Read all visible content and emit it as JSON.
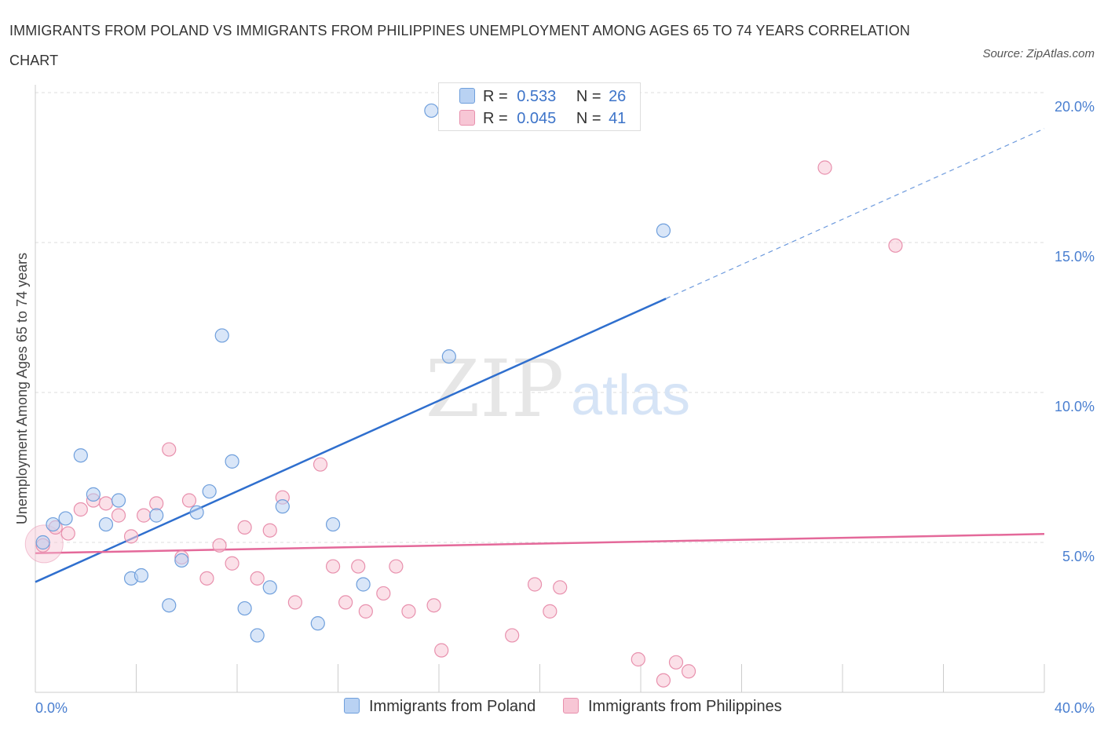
{
  "title": "IMMIGRANTS FROM POLAND VS IMMIGRANTS FROM PHILIPPINES UNEMPLOYMENT AMONG AGES 65 TO 74 YEARS CORRELATION CHART",
  "source": "Source: ZipAtlas.com",
  "watermark": {
    "zip": "ZIP",
    "atlas": "atlas"
  },
  "legend": {
    "r_label": "R =",
    "n_label": "N =",
    "rows": [
      {
        "r": "0.533",
        "n": "26"
      },
      {
        "r": "0.045",
        "n": "41"
      }
    ]
  },
  "bottom_legend": [
    "Immigrants from Poland",
    "Immigrants from Philippines"
  ],
  "colors": {
    "poland_fill": "#b9d2f3",
    "poland_stroke": "#6f9fdc",
    "poland_line": "#2f6fce",
    "philippines_fill": "#f7c6d5",
    "philippines_stroke": "#e890ad",
    "philippines_line": "#e4699a",
    "grid": "#dddddd",
    "axis_text": "#4a7fd0"
  },
  "chart_data": {
    "type": "scatter",
    "title": "IMMIGRANTS FROM POLAND VS IMMIGRANTS FROM PHILIPPINES UNEMPLOYMENT AMONG AGES 65 TO 74 YEARS CORRELATION CHART",
    "xlabel": "",
    "ylabel": "Unemployment Among Ages 65 to 74 years",
    "xlim": [
      0,
      40
    ],
    "ylim": [
      0,
      20
    ],
    "x_tick_labels": [
      "0.0%",
      "40.0%"
    ],
    "y_ticks": [
      5,
      10,
      15,
      20
    ],
    "y_tick_labels": [
      "5.0%",
      "10.0%",
      "15.0%",
      "20.0%"
    ],
    "grid": true,
    "legend_position": "top-center",
    "series": [
      {
        "name": "Immigrants from Poland",
        "points": [
          [
            0.3,
            5.0
          ],
          [
            0.7,
            5.6
          ],
          [
            1.2,
            5.8
          ],
          [
            1.8,
            7.9
          ],
          [
            2.3,
            6.6
          ],
          [
            2.8,
            5.6
          ],
          [
            3.3,
            6.4
          ],
          [
            3.8,
            3.8
          ],
          [
            4.2,
            3.9
          ],
          [
            4.8,
            5.9
          ],
          [
            5.3,
            2.9
          ],
          [
            5.8,
            4.4
          ],
          [
            6.4,
            6.0
          ],
          [
            6.9,
            6.7
          ],
          [
            7.4,
            11.9
          ],
          [
            7.8,
            7.7
          ],
          [
            8.3,
            2.8
          ],
          [
            8.8,
            1.9
          ],
          [
            9.3,
            3.5
          ],
          [
            9.8,
            6.2
          ],
          [
            11.2,
            2.3
          ],
          [
            11.8,
            5.6
          ],
          [
            13.0,
            3.6
          ],
          [
            15.7,
            19.4
          ],
          [
            16.4,
            11.2
          ],
          [
            24.9,
            15.4
          ]
        ],
        "trend": {
          "x": [
            0,
            25
          ],
          "y": [
            3.68,
            13.13
          ],
          "dashed_to": [
            40,
            18.8
          ]
        }
      },
      {
        "name": "Immigrants from Philippines",
        "points": [
          [
            0.3,
            4.9
          ],
          [
            0.8,
            5.5
          ],
          [
            1.3,
            5.3
          ],
          [
            1.8,
            6.1
          ],
          [
            2.3,
            6.4
          ],
          [
            2.8,
            6.3
          ],
          [
            3.3,
            5.9
          ],
          [
            3.8,
            5.2
          ],
          [
            4.3,
            5.9
          ],
          [
            4.8,
            6.3
          ],
          [
            5.3,
            8.1
          ],
          [
            5.8,
            4.5
          ],
          [
            6.1,
            6.4
          ],
          [
            6.8,
            3.8
          ],
          [
            7.3,
            4.9
          ],
          [
            7.8,
            4.3
          ],
          [
            8.3,
            5.5
          ],
          [
            8.8,
            3.8
          ],
          [
            9.3,
            5.4
          ],
          [
            9.8,
            6.5
          ],
          [
            10.3,
            3.0
          ],
          [
            11.3,
            7.6
          ],
          [
            11.8,
            4.2
          ],
          [
            12.3,
            3.0
          ],
          [
            12.8,
            4.2
          ],
          [
            13.1,
            2.7
          ],
          [
            13.8,
            3.3
          ],
          [
            14.3,
            4.2
          ],
          [
            14.8,
            2.7
          ],
          [
            15.8,
            2.9
          ],
          [
            16.1,
            1.4
          ],
          [
            18.9,
            1.9
          ],
          [
            19.8,
            3.6
          ],
          [
            20.4,
            2.7
          ],
          [
            20.8,
            3.5
          ],
          [
            23.9,
            1.1
          ],
          [
            24.9,
            0.4
          ],
          [
            25.4,
            1.0
          ],
          [
            25.9,
            0.7
          ],
          [
            31.3,
            17.5
          ],
          [
            34.1,
            14.9
          ]
        ],
        "trend": {
          "x": [
            0,
            40
          ],
          "y": [
            4.64,
            5.28
          ]
        }
      }
    ]
  }
}
